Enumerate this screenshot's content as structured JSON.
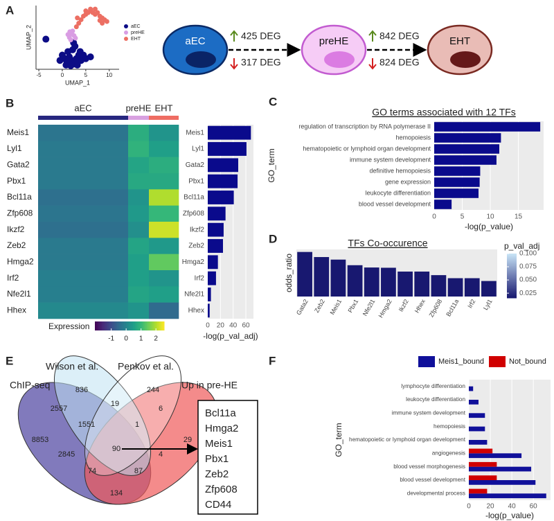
{
  "panel_labels": [
    "A",
    "B",
    "C",
    "D",
    "E",
    "F"
  ],
  "diagram": {
    "nodes": [
      {
        "label": "aEC"
      },
      {
        "label": "preHE"
      },
      {
        "label": "EHT"
      }
    ],
    "transitions": [
      {
        "up": "425 DEG",
        "down": "317 DEG"
      },
      {
        "up": "842 DEG",
        "down": "824 DEG"
      }
    ]
  },
  "venn": {
    "sets": [
      "ChIP-seq",
      "Wilson et al.",
      "Penkov et al.",
      "Up in pre-HE"
    ],
    "regions": [
      8853,
      836,
      244,
      29,
      2557,
      19,
      6,
      1551,
      1,
      2845,
      90,
      4,
      74,
      87,
      134
    ],
    "genes": [
      "Bcl11a",
      "Hmga2",
      "Meis1",
      "Pbx1",
      "Zeb2",
      "Zfp608",
      "CD44"
    ]
  },
  "chart_data": [
    {
      "type": "scatter",
      "xlabel": "UMAP_1",
      "ylabel": "UMAP_2",
      "xlim": [
        -5.6,
        12.1
      ],
      "xticks": [
        -5,
        0,
        5,
        10
      ],
      "ylim": [
        -8,
        10
      ],
      "series": [
        {
          "name": "aEC",
          "color": "#0c0c86",
          "x": [
            0.5,
            1,
            1.5,
            2,
            2.5,
            3,
            3.5,
            1.2,
            2.2,
            0,
            4,
            3.2,
            1.8,
            2.7,
            2.4,
            -0.5,
            4.5,
            5,
            0.8,
            3.8,
            -3.5,
            6
          ],
          "y": [
            -5,
            -6,
            -4.5,
            -5.5,
            -6.5,
            -5,
            -4,
            -3,
            -2.5,
            -4,
            -5.5,
            -6.8,
            -7,
            -1.5,
            -0.5,
            -5.5,
            -4,
            -5,
            -6.8,
            -3,
            0.5,
            -4.5
          ]
        },
        {
          "name": "preHE",
          "color": "#d99de3",
          "x": [
            1.5,
            2,
            2.5,
            1.8,
            2.2,
            1.2,
            2.8,
            1.6
          ],
          "y": [
            1,
            2,
            1.5,
            0.3,
            2.8,
            1.8,
            0.8,
            2.6
          ]
        },
        {
          "name": "EHT",
          "color": "#ec6f63",
          "x": [
            3,
            3.5,
            4,
            4.5,
            5,
            5.5,
            6,
            6.5,
            7,
            7.5,
            8,
            8.5,
            9,
            8.5,
            5,
            6,
            7,
            3.2,
            9.5,
            8
          ],
          "y": [
            4,
            5,
            6,
            7,
            7.5,
            8,
            8.5,
            8,
            7.5,
            8,
            7,
            6.5,
            6,
            5,
            8.5,
            9,
            9,
            6.5,
            5.5,
            5.8
          ]
        }
      ]
    },
    {
      "type": "heatmap",
      "colorbar_label": "Expression",
      "clim": [
        -2.1,
        2.55
      ],
      "cticks": [
        -1,
        0,
        1,
        2
      ],
      "colormap": "viridis",
      "groups": [
        {
          "name": "aEC",
          "color": "#27277f"
        },
        {
          "name": "preHE",
          "color": "#d8a0e0"
        },
        {
          "name": "EHT",
          "color": "#ef6d63"
        }
      ],
      "rows": [
        "Meis1",
        "Lyl1",
        "Gata2",
        "Pbx1",
        "Bcl11a",
        "Zfp608",
        "Ikzf2",
        "Zeb2",
        "Hmga2",
        "Irf2",
        "Nfe2l1",
        "Hhex"
      ],
      "values": [
        [
          -0.3,
          0.8,
          0.3
        ],
        [
          -0.2,
          0.9,
          0.5
        ],
        [
          -0.2,
          0.6,
          0.8
        ],
        [
          -0.2,
          0.7,
          0.7
        ],
        [
          -0.4,
          0.3,
          2.0
        ],
        [
          -0.3,
          0.4,
          1.0
        ],
        [
          -0.4,
          0.2,
          2.2
        ],
        [
          -0.2,
          0.6,
          0.4
        ],
        [
          -0.2,
          0.5,
          1.4
        ],
        [
          -0.1,
          0.5,
          0.3
        ],
        [
          -0.1,
          0.6,
          0.5
        ],
        [
          0.1,
          0.3,
          -0.5
        ]
      ]
    },
    {
      "type": "hbar",
      "categories": [
        "Meis1",
        "Lyl1",
        "Gata2",
        "Pbx1",
        "Bcl11a",
        "Zfp608",
        "Ikzf2",
        "Zeb2",
        "Hmga2",
        "Irf2",
        "Nfe2l1",
        "Hhex"
      ],
      "values": [
        68,
        61,
        48,
        47,
        41,
        28,
        25,
        24,
        16,
        13,
        5,
        3
      ],
      "color": "#0a0a8c",
      "xlabel": "-log(p_val_adj)",
      "xlim": [
        0,
        72
      ],
      "xticks": [
        0,
        20,
        40,
        60
      ],
      "grid": true
    },
    {
      "type": "hbar",
      "title": "GO terms associated with 12 TFs",
      "ylabel": "GO_term",
      "xlabel": "-log(p_value)",
      "categories": [
        "regulation of transcription by RNA polymerase II",
        "hemopoiesis",
        "hematopoietic or lymphoid organ development",
        "immune system development",
        "definitive hemopoiesis",
        "gene expression",
        "leukocyte differentiation",
        "blood vessel development"
      ],
      "values": [
        18.9,
        11.9,
        11.6,
        11.1,
        8.2,
        8.1,
        7.9,
        3.1
      ],
      "color": "#0a0a8c",
      "xlim": [
        0,
        19.5
      ],
      "xticks": [
        0,
        5,
        10,
        15
      ],
      "grid": true
    },
    {
      "type": "vbar",
      "title": "TFs Co-occurence",
      "ylabel": "odds_ratio",
      "categories": [
        "Gata2",
        "Zeb2",
        "Meis1",
        "Pbx1",
        "Nfe2l1",
        "Hmga2",
        "Ikzf2",
        "Hhex",
        "Zfp608",
        "Bcl11a",
        "Irf2",
        "Lyl1"
      ],
      "values": [
        17.5,
        15.5,
        14.5,
        12.3,
        11.4,
        11.3,
        9.8,
        9.8,
        8.4,
        7.2,
        7.2,
        6.1
      ],
      "ylim": [
        0,
        18.5
      ],
      "grid": true,
      "color_values": [
        0.017,
        0.017,
        0.017,
        0.017,
        0.017,
        0.017,
        0.017,
        0.017,
        0.017,
        0.017,
        0.017,
        0.017
      ],
      "colorbar_label": "p_val_adj",
      "clim": [
        0.016,
        0.1
      ],
      "color_low": "#16166e",
      "color_high": "#c8e4f6",
      "cticks": [
        0.025,
        {
          "value": 0.05,
          "label": "0.050"
        },
        0.075,
        {
          "value": 0.1,
          "label": "0.100"
        }
      ]
    },
    {
      "type": "hbar",
      "ylabel": "GO_term",
      "xlabel": "-log(p_value)",
      "xlim": [
        0,
        76
      ],
      "xticks": [
        0,
        20,
        40,
        60
      ],
      "grid": true,
      "categories": [
        "lymphocyte differentiation",
        "leukocyte differentiation",
        "immune system development",
        "hemopoiesis",
        "hematopoietic or lymphoid organ development",
        "angiogenesis",
        "blood vessel morphogenesis",
        "blood vessel development",
        "developmental process"
      ],
      "series": [
        {
          "name": "Meis1_bound",
          "color": "#10109a",
          "values": [
            4,
            9,
            15,
            15,
            17,
            49,
            58,
            62,
            72
          ]
        },
        {
          "name": "Not_bound",
          "color": "#d00000",
          "values": [
            null,
            null,
            null,
            null,
            null,
            22,
            26,
            26,
            17
          ]
        }
      ]
    }
  ]
}
